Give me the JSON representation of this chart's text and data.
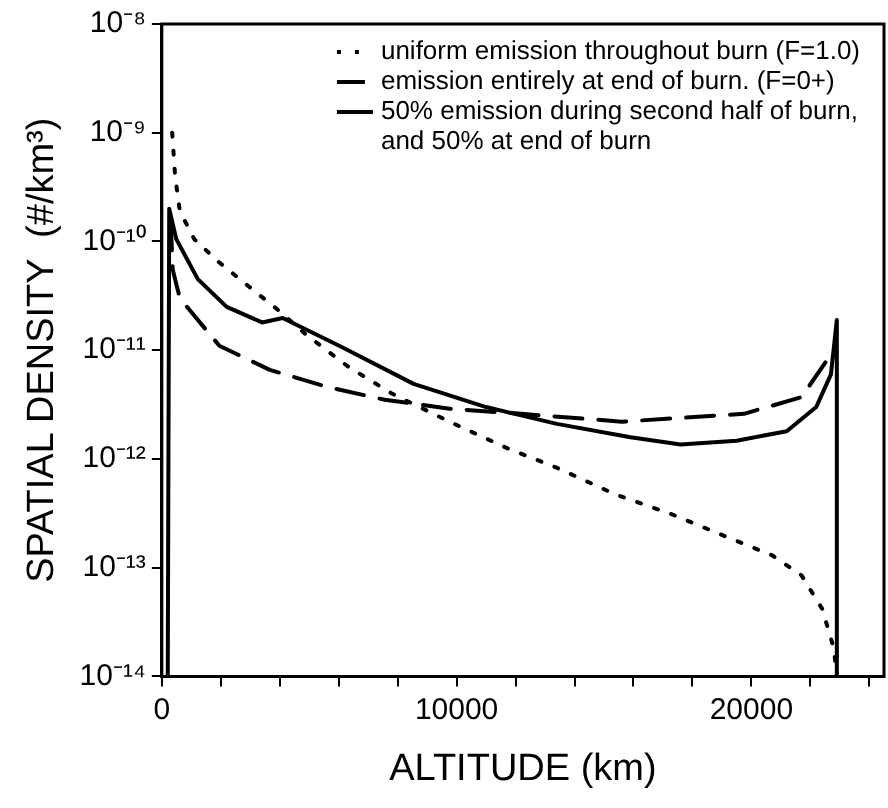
{
  "chart_data": {
    "type": "line",
    "xlabel": "ALTITUDE (km)",
    "ylabel": "SPATIAL DENSITY  (#/km³)",
    "log": "y",
    "grid": false,
    "legend": "top right",
    "marker": "none",
    "xlim": [
      0,
      24500
    ],
    "xticks": [
      0,
      {
        "value": 2000,
        "label": null
      },
      {
        "value": 4000,
        "label": null
      },
      {
        "value": 6000,
        "label": null
      },
      {
        "value": 8000,
        "label": null
      },
      10000,
      {
        "value": 12000,
        "label": null
      },
      {
        "value": 14000,
        "label": null
      },
      {
        "value": 16000,
        "label": null
      },
      {
        "value": 18000,
        "label": null
      },
      20000,
      {
        "value": 22000,
        "label": null
      },
      {
        "value": 24000,
        "label": null
      }
    ],
    "ylim": [
      1e-14,
      1e-08
    ],
    "yticks": [
      {
        "value": 1e-14,
        "label": "10⁻¹⁴"
      },
      {
        "value": 1e-13,
        "label": "10⁻¹³"
      },
      {
        "value": 1e-12,
        "label": "10⁻¹²"
      },
      {
        "value": 1e-11,
        "label": "10⁻¹¹"
      },
      {
        "value": 1e-10,
        "label": "10⁻¹⁰"
      },
      {
        "value": 1e-09,
        "label": "10⁻⁹"
      },
      {
        "value": 1e-08,
        "label": "10⁻⁸"
      }
    ],
    "series": [
      {
        "name": "uniform emission throughout burn (F=1.0)",
        "color": "#000000",
        "line_style": "dotted",
        "x": [
          350,
          450,
          610,
          1100,
          1950,
          2930,
          3900,
          4880,
          6340,
          7800,
          9760,
          11700,
          13400,
          15400,
          17300,
          19000,
          20700,
          21700,
          22400,
          22800,
          22900
        ],
        "values": [
          1e-09,
          4e-10,
          1.9e-10,
          1.05e-10,
          6.4e-11,
          3.9e-11,
          2.4e-11,
          1.4e-11,
          7e-12,
          4e-12,
          2.2e-12,
          1.26e-12,
          8.3e-13,
          4.7e-13,
          3.1e-13,
          2e-13,
          1.3e-13,
          8.5e-14,
          4.2e-14,
          1.8e-14,
          1e-14
        ]
      },
      {
        "name": "emission entirely at end of burn. (F=0+)",
        "color": "#000000",
        "line_style": "dashed",
        "x": [
          300,
          370,
          610,
          1950,
          3660,
          5600,
          7560,
          9760,
          12200,
          15600,
          19750,
          21700,
          22800
        ],
        "values": [
          1.5e-10,
          5.5e-11,
          3e-11,
          1.1e-11,
          6.6e-12,
          4.6e-12,
          3.5e-12,
          2.9e-12,
          2.6e-12,
          2.2e-12,
          2.6e-12,
          3.7e-12,
          1e-11
        ]
      },
      {
        "name": "50% emission during second half of burn, and 50% at end of burn",
        "color": "#000000",
        "line_style": "solid",
        "x": [
          200,
          250,
          490,
          1220,
          2200,
          3400,
          4100,
          6100,
          8540,
          11000,
          13400,
          15900,
          17600,
          19500,
          21200,
          22200,
          22700,
          22900,
          22900
        ],
        "values": [
          1e-14,
          2e-10,
          1.05e-10,
          4.5e-11,
          2.5e-11,
          1.8e-11,
          1.98e-11,
          1.07e-11,
          4.9e-12,
          3e-12,
          2.1e-12,
          1.58e-12,
          1.36e-12,
          1.47e-12,
          1.8e-12,
          3e-12,
          6e-12,
          1.9e-11,
          1e-14
        ]
      }
    ]
  }
}
